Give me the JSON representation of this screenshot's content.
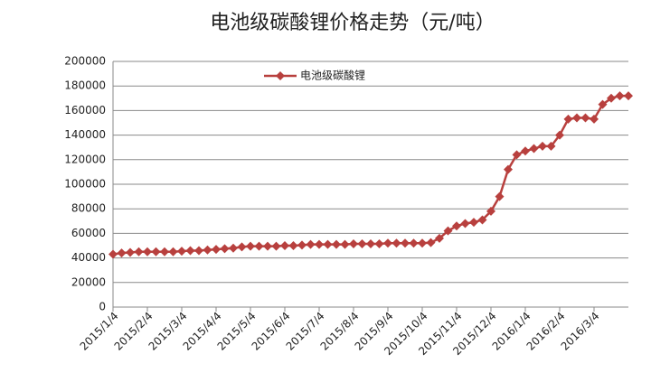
{
  "chart_data": {
    "type": "line",
    "title": "电池级碳酸锂价格走势（元/吨）",
    "categories": [
      "2015/1/4",
      null,
      null,
      null,
      "2015/2/4",
      null,
      null,
      null,
      "2015/3/4",
      null,
      null,
      null,
      "2015/4/4",
      null,
      null,
      null,
      "2015/5/4",
      null,
      null,
      null,
      "2015/6/4",
      null,
      null,
      null,
      "2015/7/4",
      null,
      null,
      null,
      "2015/8/4",
      null,
      null,
      null,
      "2015/9/4",
      null,
      null,
      null,
      "2015/10/4",
      null,
      null,
      null,
      "2015/11/4",
      null,
      null,
      null,
      "2015/12/4",
      null,
      null,
      null,
      "2016/1/4",
      null,
      null,
      null,
      "2016/2/4",
      null,
      null,
      null,
      "2016/3/4",
      null,
      null,
      null,
      null
    ],
    "series": [
      {
        "name": "电池级碳酸锂",
        "color": "#b8403e",
        "values": [
          43000,
          44000,
          44500,
          45000,
          45000,
          45000,
          45000,
          45000,
          45500,
          46000,
          46000,
          46500,
          47000,
          47500,
          48000,
          49000,
          49500,
          49500,
          49500,
          49500,
          50000,
          50000,
          50500,
          51000,
          51000,
          51000,
          51000,
          51000,
          51500,
          51500,
          51500,
          51500,
          52000,
          52000,
          52000,
          52000,
          52000,
          52500,
          56000,
          62000,
          66000,
          68000,
          69000,
          71000,
          78000,
          90000,
          112000,
          124000,
          127000,
          129000,
          131000,
          131000,
          140000,
          153000,
          154000,
          154000,
          153000,
          165000,
          170000,
          172000,
          172000
        ]
      }
    ],
    "ylim": [
      0,
      200000
    ],
    "yticks": [
      0,
      20000,
      40000,
      60000,
      80000,
      100000,
      120000,
      140000,
      160000,
      180000,
      200000
    ],
    "grid": true,
    "legend": "top-left"
  }
}
